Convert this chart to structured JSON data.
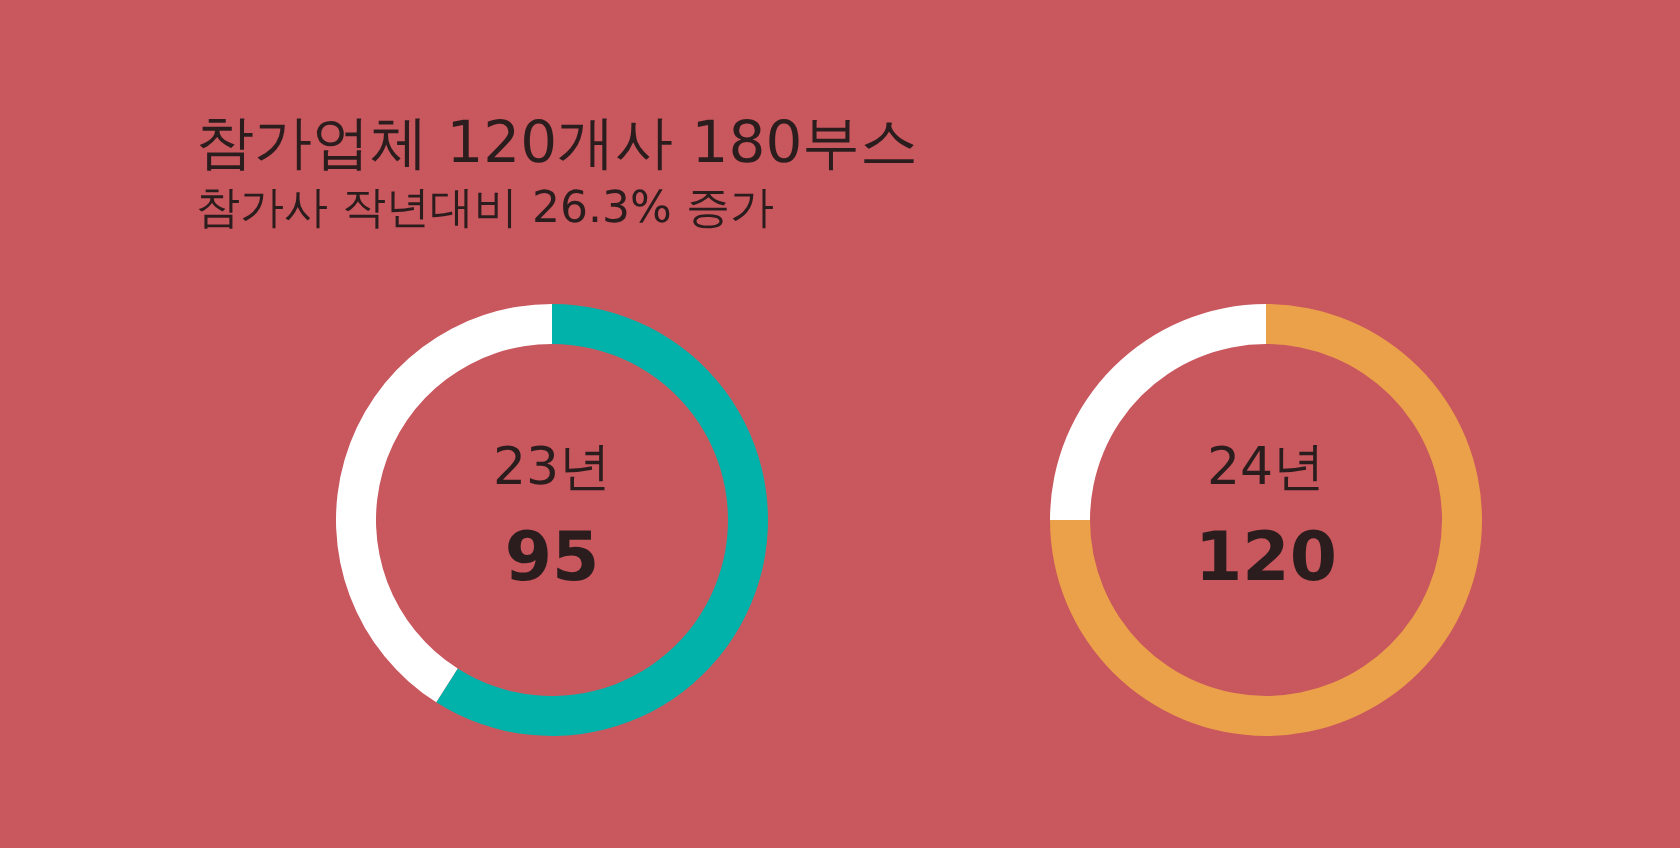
{
  "chart_data": [
    {
      "type": "other",
      "title": "참가업체 120개사 180부스",
      "subtitle": "참가사 작년대비 26.3% 증가"
    },
    {
      "type": "donut",
      "title": "23년",
      "annotations": [
        "95"
      ],
      "categories": [
        null,
        null
      ],
      "values": [
        59,
        41
      ],
      "colors": [
        "#00b2a9",
        "#ffffff"
      ]
    },
    {
      "type": "donut",
      "title": "24년",
      "annotations": [
        "120"
      ],
      "categories": [
        null,
        null
      ],
      "values": [
        75,
        25
      ],
      "colors": [
        "#eba04a",
        "#ffffff"
      ]
    }
  ]
}
